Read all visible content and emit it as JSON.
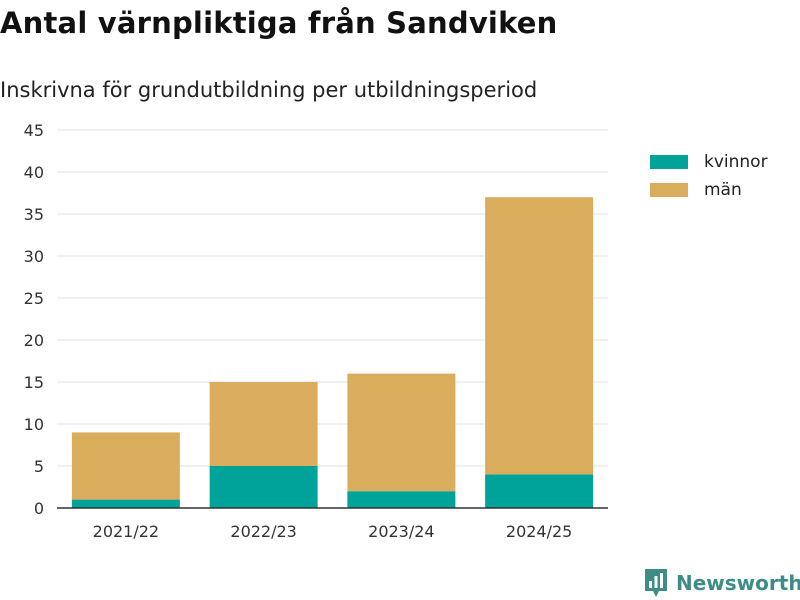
{
  "header": {
    "title": "Antal värnpliktiga från Sandviken",
    "subtitle": "Inskrivna för grundutbildning per utbildningsperiod"
  },
  "legend": {
    "items": [
      {
        "label": "kvinnor",
        "color": "#00a39a"
      },
      {
        "label": "män",
        "color": "#d9ad5c"
      }
    ]
  },
  "brand": {
    "name": "Newsworthy",
    "icon": "newsworthy-logo-icon"
  },
  "chart_data": {
    "type": "bar",
    "stacked": true,
    "categories": [
      "2021/22",
      "2022/23",
      "2023/24",
      "2024/25"
    ],
    "series": [
      {
        "name": "kvinnor",
        "values": [
          1,
          5,
          2,
          4
        ],
        "color": "#00a39a"
      },
      {
        "name": "män",
        "values": [
          8,
          10,
          14,
          33
        ],
        "color": "#d9ad5c"
      }
    ],
    "ylim": [
      0,
      45
    ],
    "yticks": [
      0,
      5,
      10,
      15,
      20,
      25,
      30,
      35,
      40,
      45
    ],
    "grid": true,
    "legend_position": "right"
  }
}
